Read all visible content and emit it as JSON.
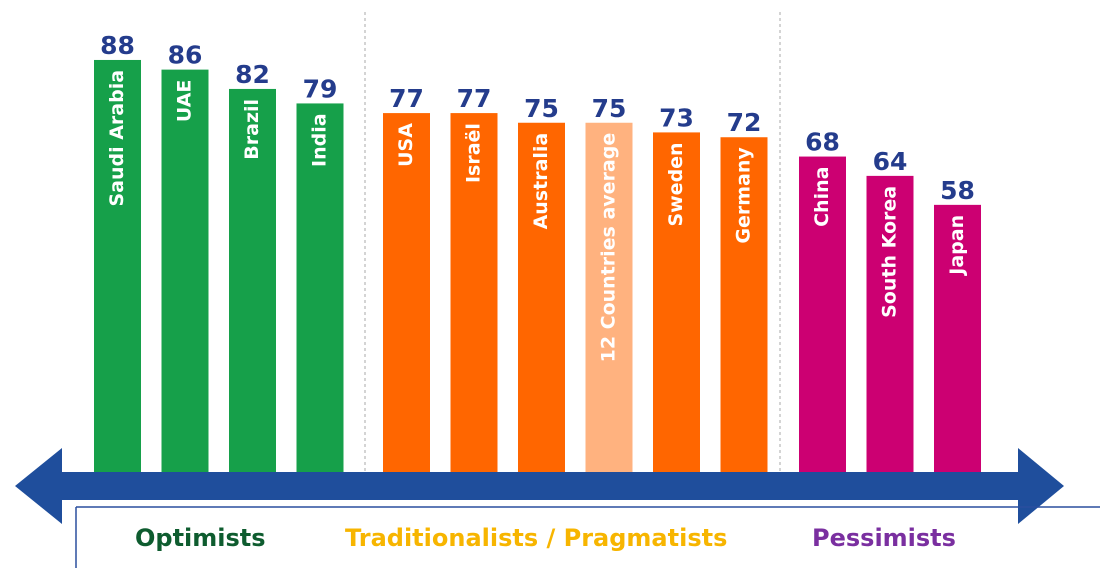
{
  "chart_data": {
    "type": "bar",
    "groups": [
      {
        "name": "Optimists",
        "label_color": "#0e5c2f",
        "categories": [
          "Saudi Arabia",
          "UAE",
          "Brazil",
          "India"
        ],
        "values": [
          88,
          86,
          82,
          79
        ],
        "colors": [
          "#16a04a",
          "#16a04a",
          "#16a04a",
          "#16a04a"
        ]
      },
      {
        "name": "Traditionalists / Pragmatists",
        "label_color": "#f7b500",
        "categories": [
          "USA",
          "Israël",
          "Australia",
          "12 Countries average",
          "Sweden",
          "Germany"
        ],
        "values": [
          77,
          77,
          75,
          75,
          73,
          72
        ],
        "colors": [
          "#ff6600",
          "#ff6600",
          "#ff6600",
          "#ffb27f",
          "#ff6600",
          "#ff6600"
        ]
      },
      {
        "name": "Pessimists",
        "label_color": "#7a2fa0",
        "categories": [
          "China",
          "South Korea",
          "Japan"
        ],
        "values": [
          68,
          64,
          58
        ],
        "colors": [
          "#cc0072",
          "#cc0072",
          "#cc0072"
        ]
      }
    ]
  }
}
